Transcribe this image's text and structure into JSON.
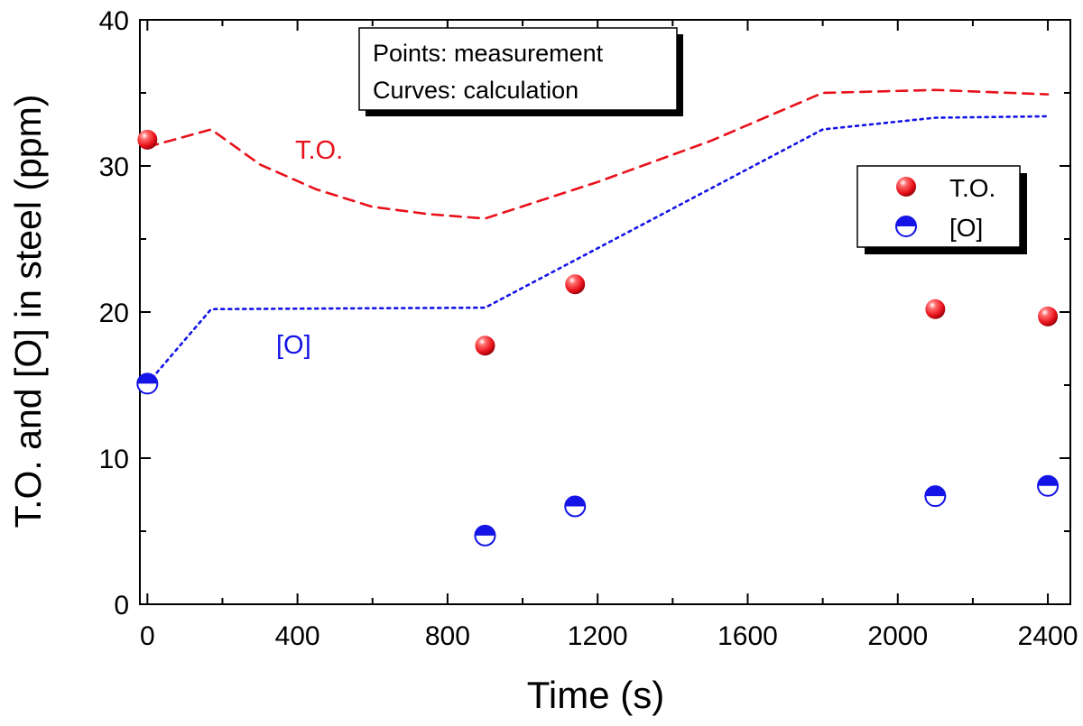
{
  "chart_data": {
    "type": "scatter",
    "xlabel": "Time (s)",
    "ylabel": "T.O. and [O] in steel (ppm)",
    "xlim": [
      -20,
      2460
    ],
    "ylim": [
      0,
      40
    ],
    "xticks": [
      0,
      400,
      800,
      1200,
      1600,
      2000,
      2400
    ],
    "yticks": [
      0,
      10,
      20,
      30,
      40
    ],
    "note_box": {
      "line1": "Points: measurement",
      "line2": "Curves: calculation"
    },
    "legend": {
      "position": "right",
      "entries": [
        "T.O.",
        "[O]"
      ]
    },
    "curve_labels": {
      "to": "T.O.",
      "o": "[O]"
    },
    "series": [
      {
        "name": "T.O.",
        "kind": "points",
        "color": "#e8101a",
        "x": [
          0,
          900,
          1140,
          2100,
          2400
        ],
        "y": [
          31.8,
          17.7,
          21.9,
          20.2,
          19.7
        ]
      },
      {
        "name": "[O]",
        "kind": "points",
        "color": "#1414e6",
        "x": [
          0,
          900,
          1140,
          2100,
          2400
        ],
        "y": [
          15.1,
          4.7,
          6.7,
          7.4,
          8.1
        ]
      },
      {
        "name": "T.O. calculation",
        "kind": "dashed-line",
        "color": "#e8101a",
        "x": [
          0,
          170,
          300,
          450,
          600,
          750,
          900,
          1200,
          1500,
          1800,
          2100,
          2400
        ],
        "y": [
          31.3,
          32.5,
          30.1,
          28.4,
          27.2,
          26.7,
          26.4,
          28.9,
          31.7,
          35.0,
          35.2,
          34.9
        ]
      },
      {
        "name": "[O] calculation",
        "kind": "dotted-line",
        "color": "#1414e6",
        "x": [
          0,
          170,
          900,
          1800,
          2100,
          2400
        ],
        "y": [
          15.1,
          20.2,
          20.3,
          32.5,
          33.3,
          33.4
        ]
      }
    ]
  }
}
